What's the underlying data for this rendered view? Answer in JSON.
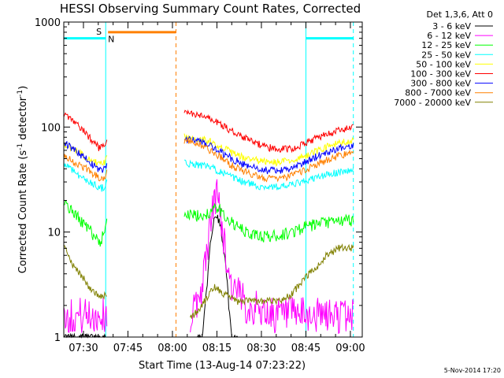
{
  "chart_data": {
    "type": "line",
    "title": "HESSI Observing Summary Count Rates, Corrected",
    "xlabel": "Start Time (13-Aug-14 07:23:22)",
    "ylabel": "Corrected Count Rate (s⁻¹ detector⁻¹)",
    "ylabel_parts": {
      "main": "Corrected Count Rate (s",
      "sup1": "-1",
      "mid": " detector",
      "sup2": "-1",
      "end": ")"
    },
    "y_scale": "log",
    "ylim": [
      1,
      1000
    ],
    "xlim_minutes": [
      443.37,
      544
    ],
    "x_ticks": [
      {
        "label": "07:30",
        "value": 450
      },
      {
        "label": "07:45",
        "value": 465
      },
      {
        "label": "08:00",
        "value": 480
      },
      {
        "label": "08:15",
        "value": 495
      },
      {
        "label": "08:30",
        "value": 510
      },
      {
        "label": "08:45",
        "value": 525
      },
      {
        "label": "09:00",
        "value": 540
      }
    ],
    "y_ticks": [
      {
        "label": "1",
        "value": 1
      },
      {
        "label": "10",
        "value": 10
      },
      {
        "label": "100",
        "value": 100
      },
      {
        "label": "1000",
        "value": 1000
      }
    ],
    "legend": {
      "header": "Det 1,3,6, Att 0",
      "placement": "right"
    },
    "series": [
      {
        "name": "3 - 6 keV",
        "color": "#000000",
        "seg1": [
          [
            443.4,
            1
          ],
          [
            449,
            1
          ],
          [
            458,
            1
          ]
        ],
        "seg2": [
          [
            488,
            1
          ],
          [
            490,
            1
          ],
          [
            492,
            4
          ],
          [
            493,
            9
          ],
          [
            494,
            13
          ],
          [
            495,
            14
          ],
          [
            496,
            12
          ],
          [
            497,
            8
          ],
          [
            498,
            5
          ],
          [
            499,
            2
          ],
          [
            500,
            1
          ],
          [
            502,
            1
          ]
        ]
      },
      {
        "name": "6 - 12 keV",
        "color": "#ff00ff",
        "seg1": [
          [
            443.4,
            1.6
          ],
          [
            450,
            1.6
          ],
          [
            456,
            1.6
          ],
          [
            458,
            1.6
          ]
        ],
        "seg2": [
          [
            486,
            1.4
          ],
          [
            490,
            3
          ],
          [
            492,
            8
          ],
          [
            494,
            20
          ],
          [
            495,
            23
          ],
          [
            496,
            18
          ],
          [
            497,
            10
          ],
          [
            498,
            6
          ],
          [
            500,
            3
          ],
          [
            505,
            2
          ],
          [
            515,
            1.6
          ],
          [
            525,
            1.6
          ],
          [
            535,
            1.6
          ],
          [
            541,
            1.6
          ]
        ]
      },
      {
        "name": "12 - 25 keV",
        "color": "#00ff00",
        "seg1": [
          [
            443.4,
            20
          ],
          [
            446,
            16
          ],
          [
            450,
            12
          ],
          [
            454,
            9
          ],
          [
            456,
            8
          ],
          [
            457.5,
            12
          ],
          [
            458,
            16
          ]
        ],
        "seg2": [
          [
            484,
            15
          ],
          [
            488,
            14
          ],
          [
            492,
            15
          ],
          [
            495,
            17
          ],
          [
            498,
            14
          ],
          [
            502,
            11
          ],
          [
            506,
            9.5
          ],
          [
            512,
            9
          ],
          [
            518,
            9.5
          ],
          [
            524,
            11
          ],
          [
            530,
            12
          ],
          [
            535,
            12.5
          ],
          [
            541,
            13
          ]
        ]
      },
      {
        "name": "25 - 50 keV",
        "color": "#00ffff",
        "seg1": [
          [
            443.4,
            45
          ],
          [
            447,
            38
          ],
          [
            450,
            32
          ],
          [
            454,
            28
          ],
          [
            456,
            26
          ],
          [
            457.5,
            28
          ],
          [
            458,
            32
          ]
        ],
        "seg2": [
          [
            484,
            45
          ],
          [
            488,
            44
          ],
          [
            492,
            42
          ],
          [
            496,
            38
          ],
          [
            500,
            33
          ],
          [
            504,
            30
          ],
          [
            510,
            27
          ],
          [
            516,
            27
          ],
          [
            520,
            28
          ],
          [
            524,
            30
          ],
          [
            530,
            34
          ],
          [
            536,
            37
          ],
          [
            541,
            39
          ]
        ]
      },
      {
        "name": "50 - 100 keV",
        "color": "#ffff00",
        "seg1": [
          [
            443.4,
            70
          ],
          [
            447,
            60
          ],
          [
            451,
            52
          ],
          [
            454,
            46
          ],
          [
            456,
            44
          ],
          [
            457.5,
            48
          ],
          [
            458,
            55
          ]
        ],
        "seg2": [
          [
            484,
            80
          ],
          [
            488,
            78
          ],
          [
            492,
            75
          ],
          [
            496,
            66
          ],
          [
            500,
            57
          ],
          [
            504,
            51
          ],
          [
            510,
            47
          ],
          [
            516,
            46
          ],
          [
            520,
            48
          ],
          [
            524,
            52
          ],
          [
            530,
            62
          ],
          [
            536,
            70
          ],
          [
            541,
            75
          ]
        ]
      },
      {
        "name": "100 - 300 keV",
        "color": "#ff0000",
        "seg1": [
          [
            443.4,
            130
          ],
          [
            447,
            110
          ],
          [
            450,
            92
          ],
          [
            453,
            75
          ],
          [
            455.5,
            62
          ],
          [
            457,
            65
          ],
          [
            458,
            80
          ]
        ],
        "seg2": [
          [
            484,
            138
          ],
          [
            488,
            130
          ],
          [
            492,
            122
          ],
          [
            496,
            108
          ],
          [
            500,
            92
          ],
          [
            504,
            80
          ],
          [
            508,
            70
          ],
          [
            514,
            62
          ],
          [
            520,
            62
          ],
          [
            524,
            68
          ],
          [
            530,
            82
          ],
          [
            536,
            92
          ],
          [
            541,
            98
          ]
        ]
      },
      {
        "name": "300 - 800 keV",
        "color": "#0000ff",
        "seg1": [
          [
            443.4,
            72
          ],
          [
            447,
            60
          ],
          [
            451,
            50
          ],
          [
            454,
            42
          ],
          [
            456,
            38
          ],
          [
            457.5,
            40
          ],
          [
            458,
            46
          ]
        ],
        "seg2": [
          [
            484,
            78
          ],
          [
            488,
            74
          ],
          [
            492,
            68
          ],
          [
            496,
            58
          ],
          [
            500,
            50
          ],
          [
            504,
            44
          ],
          [
            510,
            39
          ],
          [
            516,
            38
          ],
          [
            520,
            40
          ],
          [
            524,
            45
          ],
          [
            530,
            55
          ],
          [
            536,
            63
          ],
          [
            541,
            67
          ]
        ]
      },
      {
        "name": "800 - 7000 keV",
        "color": "#ff8000",
        "seg1": [
          [
            443.4,
            55
          ],
          [
            447,
            46
          ],
          [
            451,
            40
          ],
          [
            454,
            35
          ],
          [
            456,
            32
          ],
          [
            457.5,
            34
          ],
          [
            458,
            40
          ]
        ],
        "seg2": [
          [
            484,
            75
          ],
          [
            488,
            70
          ],
          [
            492,
            62
          ],
          [
            496,
            52
          ],
          [
            500,
            43
          ],
          [
            504,
            38
          ],
          [
            510,
            33
          ],
          [
            516,
            32
          ],
          [
            520,
            34
          ],
          [
            524,
            38
          ],
          [
            530,
            46
          ],
          [
            536,
            53
          ],
          [
            541,
            57
          ]
        ]
      },
      {
        "name": "7000 - 20000 keV",
        "color": "#808000",
        "seg1": [
          [
            443.4,
            8
          ],
          [
            446,
            5
          ],
          [
            449,
            4
          ],
          [
            452,
            3
          ],
          [
            455,
            2.5
          ],
          [
            457,
            2.5
          ],
          [
            458,
            2.5
          ]
        ],
        "seg2": [
          [
            486,
            1.5
          ],
          [
            490,
            2
          ],
          [
            494,
            3
          ],
          [
            498,
            2.5
          ],
          [
            502,
            2.2
          ],
          [
            508,
            2.2
          ],
          [
            516,
            2.2
          ],
          [
            520,
            2.5
          ],
          [
            524,
            3.5
          ],
          [
            528,
            4.5
          ],
          [
            532,
            6
          ],
          [
            536,
            7
          ],
          [
            541,
            7
          ]
        ]
      }
    ],
    "annotations": {
      "saa_label": "S",
      "night_label": "N",
      "night_bar_color": "#00ffff",
      "saa_bar_color": "#ff8000",
      "night_bars": [
        [
          443.37,
          457.5,
          700
        ],
        [
          525,
          541,
          700
        ]
      ],
      "saa_bars": [
        [
          458.3,
          481.2,
          800
        ]
      ],
      "night_lines": [
        443.37,
        457.5,
        525
      ],
      "night_dashed": [
        541
      ],
      "saa_dashed": [
        481.2
      ]
    }
  },
  "footer": {
    "date_stamp": "5-Nov-2014 17:20"
  }
}
